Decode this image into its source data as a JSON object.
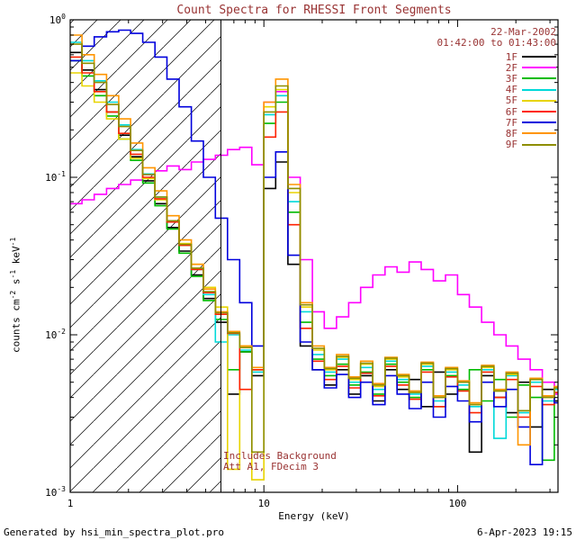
{
  "title": "Count Spectra for RHESSI Front Segments",
  "header": {
    "date": "22-Mar-2002",
    "time_range": "01:42:00 to 01:43:00"
  },
  "annotation": {
    "line1": "Includes Background",
    "line2": "Att A1, FDecim 3"
  },
  "footer": {
    "left": "Generated by hsi_min_spectra_plot.pro",
    "right": "6-Apr-2023 19:15"
  },
  "colors": {
    "text_accent": "#993333",
    "axis": "#000000",
    "background": "#ffffff"
  },
  "chart_data": {
    "type": "line",
    "title": "Count Spectra for RHESSI Front Segments",
    "xlabel": "Energy (keV)",
    "ylabel": "counts cm^-2 s^-1 keV^-1",
    "ylabel_parts": [
      [
        "t",
        "counts cm"
      ],
      [
        "sup",
        "-2"
      ],
      [
        "t",
        " s"
      ],
      [
        "sup",
        "-1"
      ],
      [
        "t",
        " keV"
      ],
      [
        "sup",
        "-1"
      ]
    ],
    "xscale": "log",
    "yscale": "log",
    "xlim": [
      1,
      330
    ],
    "ylim": [
      0.001,
      1
    ],
    "grid": false,
    "legend_position": "top-right-inside",
    "xticks": {
      "values": [
        1,
        10,
        100
      ],
      "labels": [
        "1",
        "10",
        "100"
      ]
    },
    "yticks": {
      "values": [
        1,
        0.1,
        0.01,
        0.001
      ],
      "base": "10",
      "exponents": [
        "0",
        "-1",
        "-2",
        "-3"
      ]
    },
    "hatch_region": {
      "xmin": 1,
      "xmax": 6
    },
    "step_mode": true,
    "x_bin_edges": [
      1.0,
      1.15,
      1.33,
      1.54,
      1.78,
      2.05,
      2.37,
      2.74,
      3.16,
      3.65,
      4.22,
      4.87,
      5.62,
      6.49,
      7.5,
      8.66,
      10.0,
      11.5,
      13.3,
      15.4,
      17.8,
      20.5,
      23.7,
      27.4,
      31.6,
      36.5,
      42.2,
      48.7,
      56.2,
      64.9,
      75.0,
      86.6,
      100.0,
      115.0,
      133.0,
      154.0,
      178.0,
      205.0,
      237.0,
      274.0,
      316.0
    ],
    "series": [
      {
        "name": "1F",
        "color": "#000000",
        "values": [
          0.62,
          0.48,
          0.36,
          0.26,
          0.185,
          0.135,
          0.095,
          0.068,
          0.048,
          0.034,
          0.024,
          0.017,
          0.012,
          0.0042,
          0.0078,
          0.0055,
          0.085,
          0.125,
          0.028,
          0.0085,
          0.006,
          0.0048,
          0.006,
          0.0042,
          0.0055,
          0.0038,
          0.006,
          0.0045,
          0.0052,
          0.0035,
          0.0058,
          0.0042,
          0.005,
          0.0018,
          0.0055,
          0.004,
          0.0032,
          0.005,
          0.0026,
          0.0045,
          0.0038
        ]
      },
      {
        "name": "2F",
        "color": "#ff00ff",
        "values": [
          0.068,
          0.072,
          0.078,
          0.085,
          0.09,
          0.096,
          0.104,
          0.11,
          0.118,
          0.112,
          0.125,
          0.13,
          0.138,
          0.15,
          0.155,
          0.12,
          0.3,
          0.35,
          0.1,
          0.03,
          0.014,
          0.011,
          0.013,
          0.016,
          0.02,
          0.024,
          0.027,
          0.025,
          0.029,
          0.026,
          0.022,
          0.024,
          0.018,
          0.015,
          0.012,
          0.01,
          0.0085,
          0.007,
          0.006,
          0.005,
          0.0042
        ]
      },
      {
        "name": "3F",
        "color": "#00bb00",
        "values": [
          0.55,
          0.44,
          0.33,
          0.245,
          0.175,
          0.128,
          0.092,
          0.066,
          0.047,
          0.033,
          0.0235,
          0.0165,
          0.0125,
          0.006,
          0.0078,
          0.006,
          0.22,
          0.3,
          0.06,
          0.012,
          0.007,
          0.0055,
          0.0065,
          0.0048,
          0.0058,
          0.0042,
          0.0065,
          0.005,
          0.004,
          0.006,
          0.0035,
          0.0055,
          0.0045,
          0.006,
          0.0038,
          0.0052,
          0.003,
          0.0048,
          0.004,
          0.0016,
          0.0045
        ]
      },
      {
        "name": "4F",
        "color": "#00d9d9",
        "values": [
          0.72,
          0.55,
          0.41,
          0.3,
          0.215,
          0.15,
          0.105,
          0.075,
          0.053,
          0.037,
          0.026,
          0.018,
          0.009,
          0.01,
          0.008,
          0.0058,
          0.25,
          0.33,
          0.07,
          0.014,
          0.0075,
          0.0058,
          0.007,
          0.005,
          0.0062,
          0.0045,
          0.0068,
          0.0052,
          0.0042,
          0.0063,
          0.0038,
          0.0058,
          0.0048,
          0.0035,
          0.006,
          0.0022,
          0.0055,
          0.0032,
          0.005,
          0.0038,
          0.0045
        ]
      },
      {
        "name": "5F",
        "color": "#e8d400",
        "values": [
          0.46,
          0.38,
          0.3,
          0.235,
          0.175,
          0.132,
          0.098,
          0.072,
          0.053,
          0.038,
          0.028,
          0.02,
          0.015,
          0.0014,
          0.0085,
          0.0012,
          0.28,
          0.36,
          0.08,
          0.015,
          0.008,
          0.006,
          0.0072,
          0.0052,
          0.0065,
          0.0047,
          0.007,
          0.0054,
          0.0043,
          0.0065,
          0.004,
          0.006,
          0.005,
          0.0036,
          0.0062,
          0.0044,
          0.0056,
          0.0033,
          0.0052,
          0.004,
          0.0046
        ]
      },
      {
        "name": "6F",
        "color": "#ff2200",
        "values": [
          0.58,
          0.46,
          0.35,
          0.26,
          0.19,
          0.14,
          0.1,
          0.073,
          0.052,
          0.037,
          0.026,
          0.0185,
          0.0135,
          0.0102,
          0.0045,
          0.006,
          0.18,
          0.26,
          0.05,
          0.011,
          0.0068,
          0.0052,
          0.0063,
          0.0046,
          0.0057,
          0.0041,
          0.0063,
          0.0048,
          0.0039,
          0.0058,
          0.0035,
          0.0054,
          0.0044,
          0.0032,
          0.0058,
          0.004,
          0.0052,
          0.003,
          0.0047,
          0.0036,
          0.0043
        ]
      },
      {
        "name": "7F",
        "color": "#0000dd",
        "values": [
          0.55,
          0.68,
          0.78,
          0.84,
          0.86,
          0.82,
          0.72,
          0.58,
          0.42,
          0.28,
          0.17,
          0.1,
          0.055,
          0.03,
          0.016,
          0.0085,
          0.1,
          0.145,
          0.032,
          0.009,
          0.006,
          0.0046,
          0.0056,
          0.004,
          0.005,
          0.0036,
          0.0055,
          0.0042,
          0.0034,
          0.005,
          0.003,
          0.0047,
          0.0038,
          0.0028,
          0.005,
          0.0035,
          0.0045,
          0.0026,
          0.0015,
          0.0041,
          0.0037
        ]
      },
      {
        "name": "8F",
        "color": "#ff9500",
        "values": [
          0.8,
          0.6,
          0.45,
          0.33,
          0.235,
          0.165,
          0.115,
          0.082,
          0.057,
          0.04,
          0.028,
          0.0195,
          0.014,
          0.0105,
          0.0085,
          0.0062,
          0.3,
          0.42,
          0.09,
          0.016,
          0.0085,
          0.0062,
          0.0075,
          0.0054,
          0.0068,
          0.0049,
          0.0072,
          0.0056,
          0.0044,
          0.0067,
          0.0041,
          0.0062,
          0.0051,
          0.0037,
          0.0064,
          0.0045,
          0.0058,
          0.002,
          0.0053,
          0.0041,
          0.0047
        ]
      },
      {
        "name": "9F",
        "color": "#8e8e00",
        "values": [
          0.7,
          0.53,
          0.4,
          0.29,
          0.21,
          0.148,
          0.104,
          0.075,
          0.053,
          0.0375,
          0.0265,
          0.0188,
          0.0138,
          0.0103,
          0.0083,
          0.0018,
          0.26,
          0.38,
          0.085,
          0.0155,
          0.0082,
          0.0061,
          0.0073,
          0.0053,
          0.0066,
          0.0048,
          0.0071,
          0.0055,
          0.0043,
          0.0066,
          0.004,
          0.0061,
          0.005,
          0.0036,
          0.0063,
          0.0044,
          0.0057,
          0.0033,
          0.0052,
          0.004,
          0.0046
        ]
      }
    ]
  }
}
